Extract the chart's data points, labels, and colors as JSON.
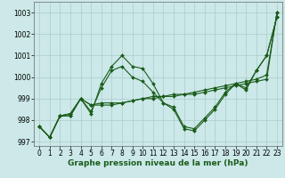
{
  "xlabel": "Graphe pression niveau de la mer (hPa)",
  "ylim": [
    996.8,
    1003.5
  ],
  "xlim": [
    -0.5,
    23.5
  ],
  "yticks": [
    997,
    998,
    999,
    1000,
    1001,
    1002,
    1003
  ],
  "xticks": [
    0,
    1,
    2,
    3,
    4,
    5,
    6,
    7,
    8,
    9,
    10,
    11,
    12,
    13,
    14,
    15,
    16,
    17,
    18,
    19,
    20,
    21,
    22,
    23
  ],
  "bg_color": "#cce8e8",
  "grid_color": "#aacccc",
  "line_color": "#1a5c1a",
  "series1": [
    997.7,
    997.2,
    998.2,
    998.2,
    999.0,
    998.3,
    999.7,
    1000.5,
    1001.0,
    1000.5,
    1000.4,
    999.7,
    998.8,
    998.5,
    997.6,
    997.5,
    998.0,
    998.5,
    999.2,
    999.7,
    999.4,
    1000.3,
    1001.0,
    1002.8
  ],
  "series2": [
    997.7,
    997.2,
    998.2,
    998.2,
    999.0,
    998.4,
    999.5,
    1000.3,
    1000.5,
    1000.0,
    999.8,
    999.3,
    998.8,
    998.6,
    997.7,
    997.6,
    998.1,
    998.6,
    999.3,
    999.7,
    999.5,
    1000.3,
    1001.0,
    1002.8
  ],
  "series3": [
    997.7,
    997.2,
    998.2,
    998.3,
    999.0,
    998.7,
    998.8,
    998.8,
    998.8,
    998.9,
    999.0,
    999.1,
    999.1,
    999.2,
    999.2,
    999.3,
    999.4,
    999.5,
    999.6,
    999.7,
    999.8,
    999.9,
    1000.1,
    1003.0
  ],
  "series4": [
    997.7,
    997.2,
    998.2,
    998.3,
    999.0,
    998.7,
    998.7,
    998.7,
    998.8,
    998.9,
    999.0,
    999.0,
    999.1,
    999.1,
    999.2,
    999.2,
    999.3,
    999.4,
    999.5,
    999.6,
    999.7,
    999.8,
    999.9,
    1003.0
  ],
  "markersize": 2.0,
  "linewidth": 0.8,
  "tick_fontsize": 5.5,
  "xlabel_fontsize": 6.5
}
